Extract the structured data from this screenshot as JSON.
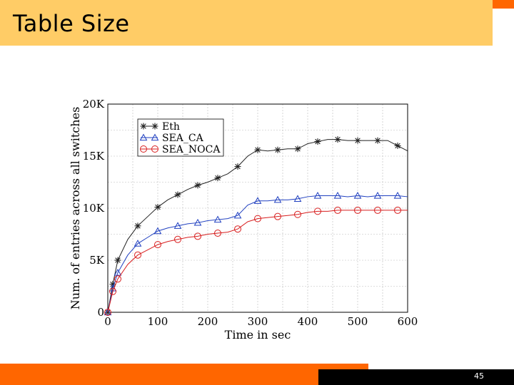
{
  "slide": {
    "title": "Table Size",
    "page_number": "45",
    "colors": {
      "bar": "#ff6600",
      "title_bg": "#ffcc66",
      "footer": "#000000"
    }
  },
  "chart_data": {
    "type": "line",
    "title": "",
    "xlabel": "Time in sec",
    "ylabel": "Num. of entries across all switches",
    "xlim": [
      0,
      600
    ],
    "ylim": [
      0,
      20000
    ],
    "x_ticks": [
      0,
      100,
      200,
      300,
      400,
      500,
      600
    ],
    "x_tick_labels": [
      "0",
      "100",
      "200",
      "300",
      "400",
      "500",
      "600"
    ],
    "y_ticks": [
      0,
      5000,
      10000,
      15000,
      20000
    ],
    "y_tick_labels": [
      "0",
      "5K",
      "10K",
      "15K",
      "20K"
    ],
    "grid": true,
    "legend_position": "top-left",
    "series": [
      {
        "name": "Eth",
        "color": "#222222",
        "marker": "star",
        "x": [
          0,
          10,
          20,
          40,
          60,
          80,
          100,
          120,
          140,
          160,
          180,
          200,
          220,
          240,
          260,
          280,
          300,
          320,
          340,
          360,
          380,
          400,
          420,
          440,
          460,
          480,
          500,
          520,
          540,
          560,
          580,
          600
        ],
        "y": [
          0,
          2700,
          5000,
          7000,
          8300,
          9200,
          10100,
          10800,
          11300,
          11800,
          12200,
          12500,
          12900,
          13300,
          14000,
          15000,
          15600,
          15500,
          15600,
          15700,
          15700,
          16200,
          16400,
          16600,
          16600,
          16500,
          16500,
          16500,
          16500,
          16500,
          16000,
          15500
        ]
      },
      {
        "name": "SEA_CA",
        "color": "#2040c0",
        "marker": "triangle",
        "x": [
          0,
          10,
          20,
          40,
          60,
          80,
          100,
          120,
          140,
          160,
          180,
          200,
          220,
          240,
          260,
          280,
          300,
          320,
          340,
          360,
          380,
          400,
          420,
          440,
          460,
          480,
          500,
          520,
          540,
          560,
          580,
          600
        ],
        "y": [
          0,
          2300,
          3800,
          5500,
          6600,
          7200,
          7800,
          8100,
          8300,
          8500,
          8600,
          8800,
          8900,
          9000,
          9300,
          10300,
          10700,
          10700,
          10800,
          10800,
          10900,
          11100,
          11200,
          11200,
          11200,
          11100,
          11200,
          11100,
          11200,
          11200,
          11200,
          11100
        ]
      },
      {
        "name": "SEA_NOCA",
        "color": "#d81e1e",
        "marker": "circle",
        "x": [
          0,
          10,
          20,
          40,
          60,
          80,
          100,
          120,
          140,
          160,
          180,
          200,
          220,
          240,
          260,
          280,
          300,
          320,
          340,
          360,
          380,
          400,
          420,
          440,
          460,
          480,
          500,
          520,
          540,
          560,
          580,
          600
        ],
        "y": [
          0,
          2000,
          3200,
          4600,
          5500,
          6000,
          6500,
          6800,
          7000,
          7200,
          7300,
          7500,
          7600,
          7700,
          8000,
          8700,
          9000,
          9100,
          9200,
          9300,
          9400,
          9600,
          9700,
          9700,
          9800,
          9800,
          9800,
          9800,
          9800,
          9800,
          9800,
          9800
        ]
      }
    ]
  }
}
